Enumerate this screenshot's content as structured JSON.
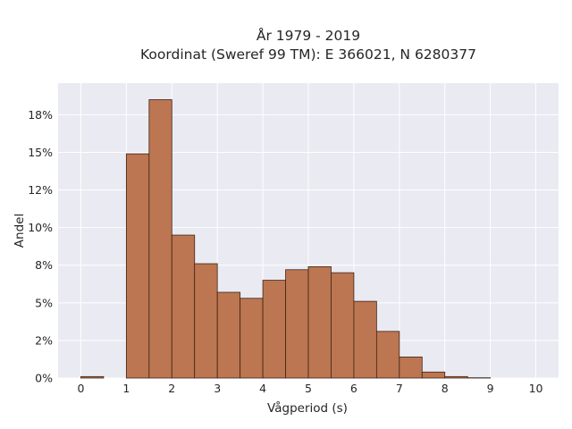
{
  "chart_data": {
    "type": "bar",
    "title": "År 1979 - 2019",
    "subtitle": "Koordinat (Sweref 99 TM): E 366021, N 6280377",
    "xlabel": "Vågperiod (s)",
    "ylabel": "Andel",
    "bin_width": 0.5,
    "bins_start": [
      0,
      0.5,
      1,
      1.5,
      2,
      2.5,
      3,
      3.5,
      4,
      4.5,
      5,
      5.5,
      6,
      6.5,
      7,
      7.5,
      8,
      8.5,
      9,
      9.5
    ],
    "values": [
      0.1,
      0,
      14.9,
      18.5,
      9.5,
      7.6,
      5.7,
      5.3,
      6.5,
      7.2,
      7.4,
      7.0,
      5.1,
      3.1,
      1.4,
      0.4,
      0.1,
      0.02,
      0,
      0
    ],
    "xlim": [
      -0.5,
      10.5
    ],
    "ylim": [
      0,
      19.6
    ],
    "xticks": [
      0,
      1,
      2,
      3,
      4,
      5,
      6,
      7,
      8,
      9,
      10
    ],
    "xtick_labels": [
      "0",
      "1",
      "2",
      "3",
      "4",
      "5",
      "6",
      "7",
      "8",
      "9",
      "10"
    ],
    "yticks": [
      0,
      2.5,
      5,
      7.5,
      10,
      12.5,
      15,
      17.5
    ],
    "ytick_labels": [
      "0%",
      "2%",
      "5%",
      "8%",
      "10%",
      "12%",
      "15%",
      "18%"
    ],
    "grid": true,
    "colors": {
      "bar_fill": "#bc7651",
      "bar_edge": "#3d2418",
      "plot_background": "#eaeaf2",
      "grid": "#ffffff"
    }
  }
}
